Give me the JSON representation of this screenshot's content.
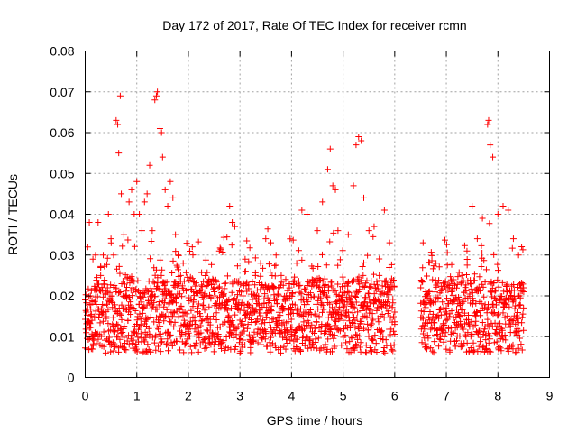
{
  "chart_data": {
    "type": "scatter",
    "title": "Day 172 of 2017, Rate Of TEC Index for receiver rcmn",
    "xlabel": "GPS time / hours",
    "ylabel": "ROTI / TECUs",
    "xlim": [
      0,
      9
    ],
    "ylim": [
      0,
      0.08
    ],
    "xticks": [
      "0",
      "1",
      "2",
      "3",
      "4",
      "5",
      "6",
      "7",
      "8",
      "9"
    ],
    "yticks": [
      "0",
      "0.01",
      "0.02",
      "0.03",
      "0.04",
      "0.05",
      "0.06",
      "0.07",
      "0.08"
    ],
    "grid": true,
    "marker": "+",
    "marker_color": "#ff0000",
    "data_gap": [
      6.0,
      6.5
    ],
    "series": [
      {
        "name": "ROTI",
        "x": [
          0.02,
          0.05,
          0.08,
          0.1,
          0.15,
          0.2,
          0.25,
          0.3,
          0.35,
          0.4,
          0.45,
          0.5,
          0.55,
          0.6,
          0.63,
          0.65,
          0.68,
          0.7,
          0.75,
          0.8,
          0.85,
          0.9,
          0.95,
          1.0,
          1.05,
          1.1,
          1.15,
          1.2,
          1.25,
          1.3,
          1.35,
          1.38,
          1.4,
          1.45,
          1.48,
          1.5,
          1.55,
          1.6,
          1.65,
          1.7,
          1.75,
          1.8,
          1.85,
          1.9,
          2.0,
          2.1,
          2.2,
          2.3,
          2.4,
          2.5,
          2.6,
          2.7,
          2.8,
          2.85,
          2.9,
          3.0,
          3.1,
          3.2,
          3.3,
          3.4,
          3.5,
          3.6,
          3.7,
          3.8,
          3.9,
          4.0,
          4.1,
          4.2,
          4.3,
          4.4,
          4.5,
          4.6,
          4.7,
          4.75,
          4.8,
          4.85,
          4.9,
          5.0,
          5.1,
          5.2,
          5.25,
          5.3,
          5.35,
          5.4,
          5.5,
          5.6,
          5.7,
          5.8,
          5.9,
          6.0,
          6.55,
          6.6,
          6.7,
          6.8,
          6.9,
          7.0,
          7.1,
          7.2,
          7.3,
          7.4,
          7.5,
          7.6,
          7.7,
          7.8,
          7.82,
          7.85,
          7.9,
          8.0,
          8.1,
          8.2,
          8.3,
          8.4,
          8.5
        ],
        "y": [
          0.011,
          0.032,
          0.038,
          0.02,
          0.029,
          0.03,
          0.038,
          0.025,
          0.03,
          0.006,
          0.04,
          0.034,
          0.03,
          0.063,
          0.062,
          0.055,
          0.069,
          0.045,
          0.035,
          0.02,
          0.043,
          0.046,
          0.04,
          0.048,
          0.04,
          0.036,
          0.043,
          0.045,
          0.052,
          0.036,
          0.068,
          0.069,
          0.07,
          0.061,
          0.06,
          0.054,
          0.046,
          0.042,
          0.048,
          0.044,
          0.035,
          0.03,
          0.025,
          0.028,
          0.012,
          0.021,
          0.018,
          0.02,
          0.024,
          0.021,
          0.031,
          0.023,
          0.042,
          0.038,
          0.037,
          0.006,
          0.029,
          0.016,
          0.025,
          0.028,
          0.034,
          0.033,
          0.03,
          0.025,
          0.02,
          0.01,
          0.028,
          0.041,
          0.04,
          0.024,
          0.036,
          0.043,
          0.051,
          0.056,
          0.047,
          0.046,
          0.036,
          0.014,
          0.035,
          0.047,
          0.057,
          0.059,
          0.058,
          0.044,
          0.036,
          0.037,
          0.025,
          0.041,
          0.033,
          0.013,
          0.033,
          0.021,
          0.018,
          0.028,
          0.012,
          0.017,
          0.021,
          0.009,
          0.025,
          0.031,
          0.042,
          0.034,
          0.039,
          0.062,
          0.063,
          0.057,
          0.054,
          0.04,
          0.042,
          0.041,
          0.034,
          0.03,
          0.021
        ]
      }
    ]
  }
}
